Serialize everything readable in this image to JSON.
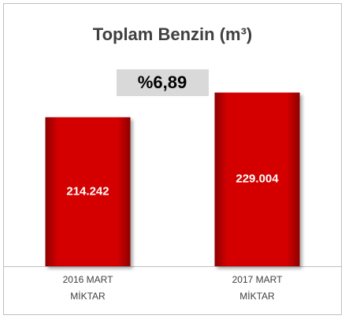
{
  "chart_data": {
    "type": "bar",
    "title": "Toplam Benzin (m³)",
    "annotation": "%6,89",
    "categories": [
      "2016 MART MİKTAR",
      "2017 MART MİKTAR"
    ],
    "values": [
      214242,
      229004
    ],
    "value_labels": [
      "214.242",
      "229.004"
    ],
    "color": "#c00000",
    "ylim": [
      125000,
      250000
    ]
  }
}
